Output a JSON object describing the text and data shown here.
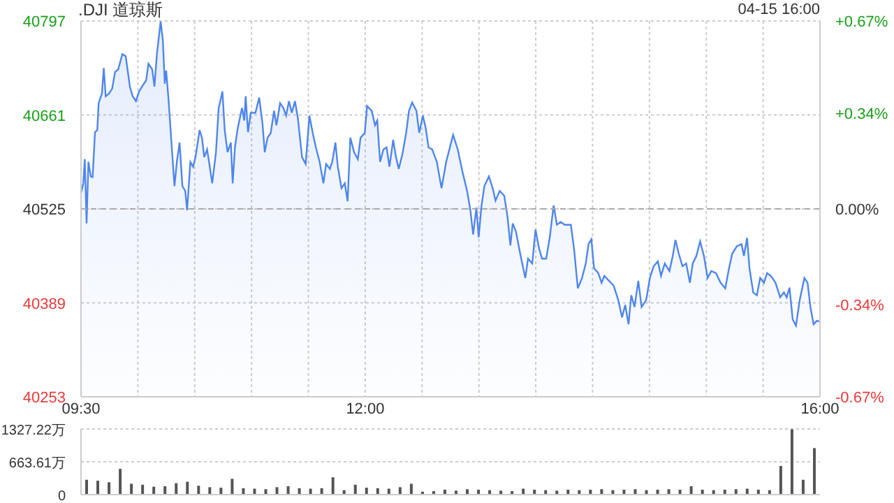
{
  "chart_data": [
    {
      "type": "area",
      "title": ".DJI 道琼斯",
      "annotations": [
        "04-15 16:00"
      ],
      "x": [
        9.5,
        9.52,
        9.533,
        9.549,
        9.565,
        9.586,
        9.602,
        9.623,
        9.643,
        9.655,
        9.684,
        9.7,
        9.717,
        9.746,
        9.774,
        9.799,
        9.827,
        9.864,
        9.893,
        9.909,
        9.93,
        9.954,
        9.983,
        10.011,
        10.052,
        10.073,
        10.093,
        10.126,
        10.146,
        10.167,
        10.2,
        10.22,
        10.237,
        10.249,
        10.269,
        10.298,
        10.322,
        10.343,
        10.367,
        10.392,
        10.417,
        10.433,
        10.462,
        10.486,
        10.507,
        10.543,
        10.564,
        10.584,
        10.609,
        10.629,
        10.654,
        10.687,
        10.711,
        10.744,
        10.764,
        10.789,
        10.818,
        10.834,
        10.854,
        10.879,
        10.916,
        10.936,
        10.948,
        10.969,
        10.993,
        11.034,
        11.067,
        11.096,
        11.116,
        11.141,
        11.169,
        11.198,
        11.219,
        11.251,
        11.28,
        11.304,
        11.329,
        11.354,
        11.382,
        11.407,
        11.444,
        11.476,
        11.509,
        11.538,
        11.566,
        11.599,
        11.632,
        11.656,
        11.689,
        11.71,
        11.738,
        11.759,
        11.791,
        11.82,
        11.845,
        11.869,
        11.902,
        11.935,
        11.959,
        11.996,
        12.016,
        12.057,
        12.086,
        12.106,
        12.131,
        12.16,
        12.188,
        12.213,
        12.246,
        12.27,
        12.295,
        12.327,
        12.36,
        12.385,
        12.413,
        12.45,
        12.475,
        12.507,
        12.532,
        12.557,
        12.589,
        12.63,
        12.671,
        12.712,
        12.773,
        12.814,
        12.855,
        12.896,
        12.925,
        12.949,
        12.978,
        12.998,
        13.023,
        13.048,
        13.088,
        13.121,
        13.146,
        13.183,
        13.223,
        13.252,
        13.277,
        13.297,
        13.326,
        13.367,
        13.408,
        13.432,
        13.469,
        13.498,
        13.53,
        13.555,
        13.592,
        13.624,
        13.657,
        13.686,
        13.719,
        13.755,
        13.809,
        13.837,
        13.87,
        13.907,
        13.94,
        13.964,
        13.989,
        14.013,
        14.05,
        14.079,
        14.103,
        14.144,
        14.185,
        14.226,
        14.259,
        14.287,
        14.316,
        14.34,
        14.369,
        14.402,
        14.431,
        14.471,
        14.504,
        14.537,
        14.574,
        14.602,
        14.635,
        14.676,
        14.705,
        14.729,
        14.758,
        14.791,
        14.823,
        14.856,
        14.881,
        14.913,
        14.946,
        14.979,
        15.012,
        15.044,
        15.085,
        15.126,
        15.167,
        15.2,
        15.228,
        15.269,
        15.31,
        15.331,
        15.359,
        15.38,
        15.413,
        15.445,
        15.474,
        15.507,
        15.535,
        15.568,
        15.609,
        15.65,
        15.683,
        15.707,
        15.732,
        15.76,
        15.789,
        15.822,
        15.863,
        15.891,
        15.916,
        15.944,
        15.973,
        15.994
      ],
      "series": [
        {
          "color": "#4f86ec",
          "values": [
            40548,
            40562,
            40597,
            40504,
            40593,
            40572,
            40571,
            40636,
            40639,
            40678,
            40692,
            40729,
            40688,
            40692,
            40699,
            40723,
            40727,
            40749,
            40746,
            40727,
            40702,
            40688,
            40681,
            40695,
            40706,
            40711,
            40735,
            40727,
            40702,
            40748,
            40796,
            40769,
            40706,
            40725,
            40685,
            40615,
            40558,
            40593,
            40621,
            40558,
            40551,
            40523,
            40593,
            40586,
            40600,
            40639,
            40628,
            40600,
            40611,
            40590,
            40562,
            40607,
            40671,
            40695,
            40639,
            40607,
            40621,
            40562,
            40614,
            40642,
            40671,
            40653,
            40688,
            40636,
            40664,
            40664,
            40686,
            40649,
            40607,
            40628,
            40635,
            40667,
            40646,
            40678,
            40671,
            40660,
            40681,
            40664,
            40681,
            40657,
            40600,
            40590,
            40660,
            40635,
            40614,
            40593,
            40562,
            40590,
            40583,
            40593,
            40621,
            40586,
            40555,
            40562,
            40536,
            40628,
            40607,
            40597,
            40628,
            40635,
            40674,
            40667,
            40646,
            40653,
            40593,
            40611,
            40614,
            40586,
            40625,
            40600,
            40583,
            40604,
            40635,
            40667,
            40679,
            40667,
            40635,
            40660,
            40642,
            40614,
            40611,
            40593,
            40555,
            40593,
            40632,
            40611,
            40579,
            40551,
            40523,
            40488,
            40527,
            40484,
            40530,
            40558,
            40572,
            40555,
            40537,
            40551,
            40544,
            40513,
            40472,
            40504,
            40492,
            40457,
            40425,
            40453,
            40446,
            40495,
            40467,
            40453,
            40453,
            40485,
            40530,
            40502,
            40506,
            40502,
            40502,
            40467,
            40410,
            40425,
            40446,
            40474,
            40481,
            40439,
            40432,
            40418,
            40428,
            40421,
            40414,
            40393,
            40368,
            40386,
            40358,
            40400,
            40383,
            40421,
            40383,
            40393,
            40425,
            40442,
            40449,
            40428,
            40446,
            40435,
            40457,
            40480,
            40460,
            40442,
            40446,
            40418,
            40446,
            40457,
            40478,
            40457,
            40425,
            40435,
            40432,
            40418,
            40410,
            40439,
            40460,
            40471,
            40474,
            40457,
            40483,
            40439,
            40404,
            40400,
            40425,
            40418,
            40432,
            40428,
            40418,
            40397,
            40404,
            40397,
            40411,
            40365,
            40356,
            40393,
            40425,
            40418,
            40383,
            40358,
            40363,
            40362
          ]
        }
      ],
      "xlim": [
        9.5,
        16
      ],
      "xticks": [
        {
          "value": 9.5,
          "label": "09:30"
        },
        {
          "value": 10,
          "label": null
        },
        {
          "value": 10.5,
          "label": null
        },
        {
          "value": 11,
          "label": null
        },
        {
          "value": 11.5,
          "label": null
        },
        {
          "value": 12,
          "label": "12:00"
        },
        {
          "value": 12.5,
          "label": null
        },
        {
          "value": 13,
          "label": null
        },
        {
          "value": 13.5,
          "label": null
        },
        {
          "value": 14,
          "label": null
        },
        {
          "value": 14.5,
          "label": null
        },
        {
          "value": 15,
          "label": null
        },
        {
          "value": 15.5,
          "label": null
        },
        {
          "value": 16,
          "label": "16:00"
        }
      ],
      "ylim": [
        40253,
        40797
      ],
      "yticks": [
        40253,
        40389,
        40525,
        40661,
        40797
      ],
      "y2lim": [
        -0.67,
        0.67
      ],
      "y2ticks": [
        {
          "value": -0.67,
          "label": "-0.67%"
        },
        {
          "value": -0.34,
          "label": "-0.34%"
        },
        {
          "value": 0,
          "label": "0.00%"
        },
        {
          "value": 0.34,
          "label": "+0.34%"
        },
        {
          "value": 0.67,
          "label": "+0.67%"
        }
      ],
      "ref_lines": [
        {
          "axis": "y",
          "value": 40525,
          "color": "#aaaaaa",
          "line_style": "dashed"
        }
      ],
      "grid": true
    },
    {
      "type": "bar",
      "categories": [
        null,
        null,
        null,
        null,
        null,
        null,
        null,
        null,
        null,
        null,
        null,
        null,
        null,
        null,
        null,
        null,
        null,
        null,
        null,
        null,
        null,
        null,
        null,
        null,
        null,
        null,
        null,
        null,
        null,
        null,
        null,
        null,
        null,
        null,
        null,
        null,
        null,
        null,
        null,
        null,
        null,
        null,
        null,
        null,
        null,
        null,
        null,
        null,
        null,
        null,
        null,
        null,
        null,
        null,
        null,
        null,
        null,
        null,
        null,
        null,
        null,
        null,
        null,
        null,
        null,
        null
      ],
      "values": [
        300,
        280,
        250,
        520,
        220,
        200,
        160,
        170,
        230,
        260,
        180,
        150,
        140,
        320,
        130,
        120,
        110,
        150,
        170,
        130,
        120,
        130,
        350,
        90,
        200,
        140,
        130,
        120,
        150,
        220,
        60,
        70,
        100,
        80,
        110,
        100,
        90,
        80,
        70,
        120,
        100,
        90,
        80,
        100,
        90,
        100,
        110,
        90,
        100,
        110,
        90,
        100,
        110,
        100,
        170,
        100,
        90,
        100,
        110,
        120,
        100,
        90,
        580,
        1320,
        300,
        940
      ],
      "color": "#555555",
      "ylim": [
        0,
        1327.22
      ],
      "yticks": [
        0,
        {
          "value": 663.61,
          "label": "663.61万"
        },
        {
          "value": 1327.22,
          "label": "1327.22万"
        }
      ],
      "grid": "y",
      "tick_labels": "y"
    }
  ]
}
